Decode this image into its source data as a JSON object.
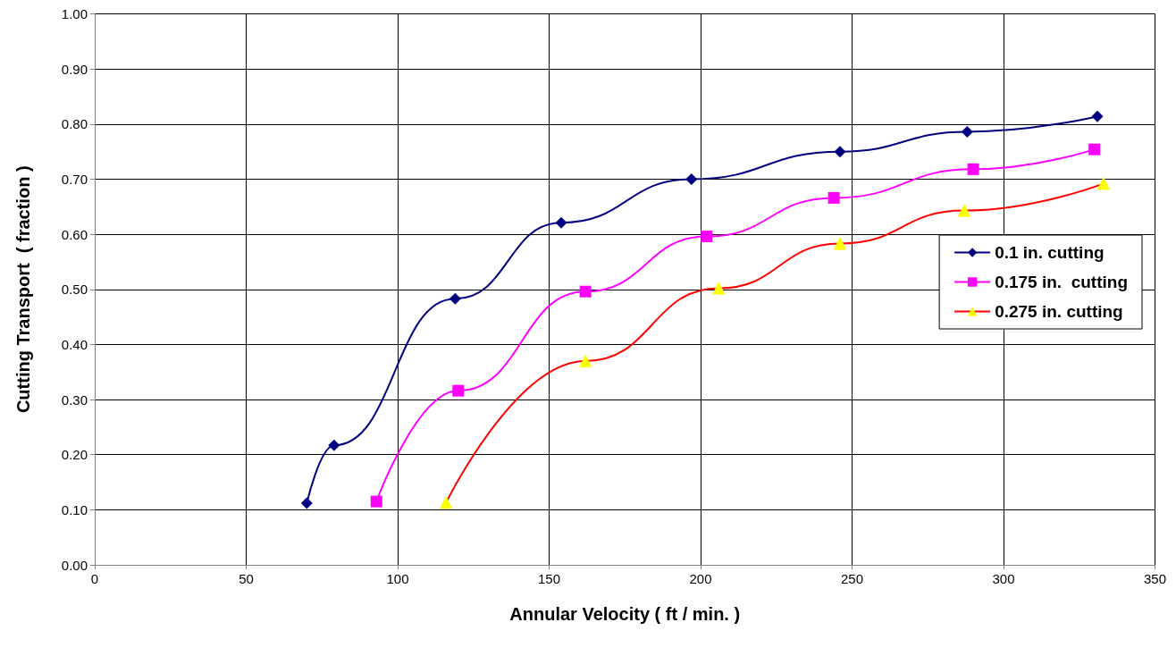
{
  "chart_data": {
    "type": "line",
    "xlabel": "Annular Velocity ( ft / min. )",
    "ylabel": "Cutting Transport  ( fraction )",
    "xlim": [
      0,
      350
    ],
    "xticks": [
      0,
      50,
      100,
      150,
      200,
      250,
      300,
      350
    ],
    "ylim": [
      0,
      1
    ],
    "yticks": [
      {
        "value": 0,
        "label": "0.00"
      },
      {
        "value": 0.1,
        "label": "0.10"
      },
      {
        "value": 0.2,
        "label": "0.20"
      },
      {
        "value": 0.3,
        "label": "0.30"
      },
      {
        "value": 0.4,
        "label": "0.40"
      },
      {
        "value": 0.5,
        "label": "0.50"
      },
      {
        "value": 0.6,
        "label": "0.60"
      },
      {
        "value": 0.7,
        "label": "0.70"
      },
      {
        "value": 0.8,
        "label": "0.80"
      },
      {
        "value": 0.9,
        "label": "0.90"
      },
      {
        "value": 1,
        "label": "1.00"
      }
    ],
    "grid": true,
    "legend": "right",
    "series": [
      {
        "name": "0.1 in. cutting",
        "color": "#000080",
        "marker": "diamond",
        "x": [
          70,
          79,
          119,
          154,
          197,
          246,
          288,
          331
        ],
        "values": [
          0.112,
          0.217,
          0.483,
          0.621,
          0.7,
          0.75,
          0.786,
          0.814
        ]
      },
      {
        "name": "0.175 in.  cutting",
        "color": "#ff00ff",
        "marker": "square",
        "x": [
          93,
          120,
          162,
          202,
          244,
          290,
          330
        ],
        "values": [
          0.115,
          0.316,
          0.496,
          0.596,
          0.666,
          0.718,
          0.754
        ]
      },
      {
        "name": "0.275 in. cutting",
        "color": "#ff0000",
        "marker": "triangle",
        "colors": [
          "#ffff00",
          "#ffff00",
          "#ffff00",
          "#ffff00",
          "#ffff00",
          "#ffff00"
        ],
        "x": [
          116,
          162,
          206,
          246,
          287,
          333
        ],
        "values": [
          0.113,
          0.37,
          0.502,
          0.583,
          0.643,
          0.692
        ]
      }
    ]
  }
}
